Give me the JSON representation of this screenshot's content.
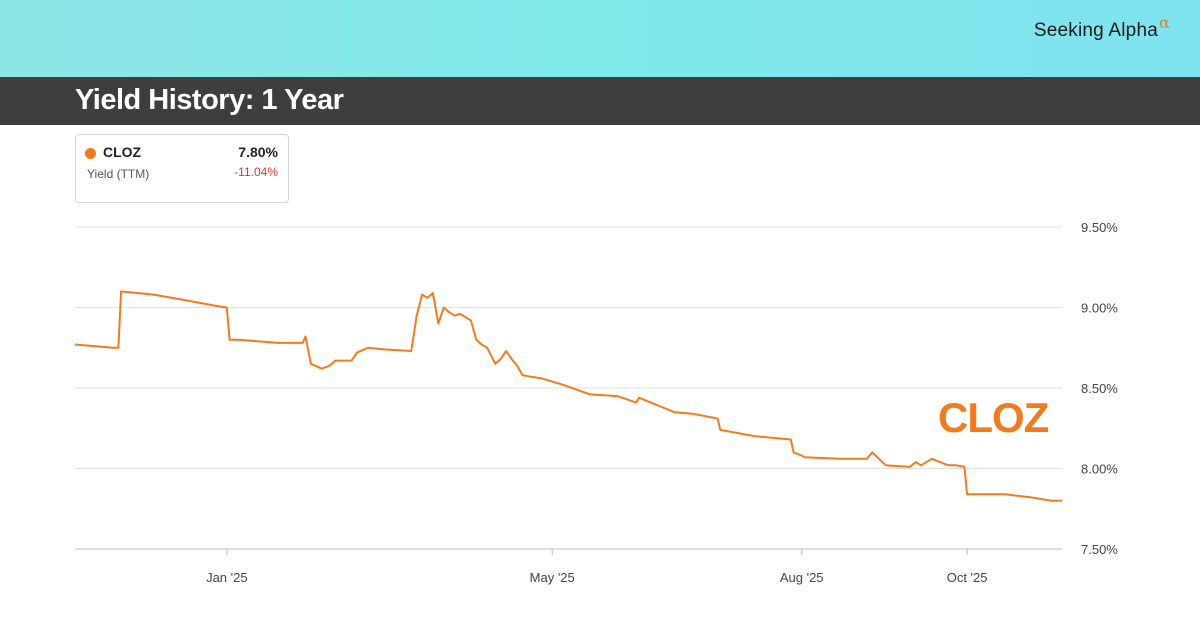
{
  "brand": {
    "name": "Seeking Alpha",
    "mark": "α"
  },
  "header": {
    "title": "Yield History: 1 Year"
  },
  "legend": {
    "ticker": "CLOZ",
    "value": "7.80%",
    "label": "Yield (TTM)",
    "change": "-11.04%"
  },
  "overlay_label": "CLOZ",
  "colors": {
    "series": "#f07c21",
    "negative": "#d33b3b",
    "title_band": "#3e3e3e",
    "top_band": "#80e8ea"
  },
  "chart_data": {
    "type": "line",
    "title": "Yield History: 1 Year",
    "xlabel": "",
    "ylabel": "",
    "ylim": [
      7.5,
      9.5
    ],
    "yticks": [
      9.5,
      9.0,
      8.5,
      8.0,
      7.5
    ],
    "ytick_labels": [
      "9.50%",
      "9.00%",
      "8.50%",
      "8.00%",
      "7.50%"
    ],
    "xlim": [
      "2024-11-06",
      "2025-11-05"
    ],
    "xticks": [
      "2025-01-01",
      "2025-05-01",
      "2025-08-01",
      "2025-10-01"
    ],
    "xtick_labels": [
      "Jan '25",
      "May '25",
      "Aug '25",
      "Oct '25"
    ],
    "grid": true,
    "legend_position": "top-left",
    "series": [
      {
        "name": "CLOZ",
        "x": [
          "2024-11-06",
          "2024-11-20",
          "2024-11-22",
          "2024-11-23",
          "2024-12-05",
          "2024-12-15",
          "2024-12-28",
          "2025-01-01",
          "2025-01-02",
          "2025-01-05",
          "2025-01-20",
          "2025-01-29",
          "2025-01-30",
          "2025-02-01",
          "2025-02-05",
          "2025-02-08",
          "2025-02-10",
          "2025-02-16",
          "2025-02-18",
          "2025-02-22",
          "2025-02-28",
          "2025-03-10",
          "2025-03-12",
          "2025-03-14",
          "2025-03-16",
          "2025-03-18",
          "2025-03-20",
          "2025-03-22",
          "2025-03-24",
          "2025-03-26",
          "2025-03-28",
          "2025-03-30",
          "2025-04-01",
          "2025-04-03",
          "2025-04-05",
          "2025-04-07",
          "2025-04-10",
          "2025-04-12",
          "2025-04-14",
          "2025-04-16",
          "2025-04-18",
          "2025-04-20",
          "2025-04-23",
          "2025-04-27",
          "2025-05-05",
          "2025-05-15",
          "2025-05-25",
          "2025-06-01",
          "2025-06-02",
          "2025-06-15",
          "2025-06-22",
          "2025-06-28",
          "2025-07-01",
          "2025-07-02",
          "2025-07-15",
          "2025-07-28",
          "2025-07-29",
          "2025-08-01",
          "2025-08-02",
          "2025-08-15",
          "2025-08-25",
          "2025-08-27",
          "2025-09-01",
          "2025-09-10",
          "2025-09-12",
          "2025-09-14",
          "2025-09-18",
          "2025-09-21",
          "2025-09-24",
          "2025-09-27",
          "2025-09-30",
          "2025-10-01",
          "2025-10-05",
          "2025-10-15",
          "2025-10-25",
          "2025-11-01",
          "2025-11-05"
        ],
        "y": [
          8.77,
          8.75,
          8.75,
          9.1,
          9.08,
          9.05,
          9.01,
          9.0,
          8.8,
          8.8,
          8.78,
          8.78,
          8.82,
          8.65,
          8.62,
          8.64,
          8.67,
          8.67,
          8.72,
          8.75,
          8.74,
          8.73,
          8.95,
          9.08,
          9.06,
          9.09,
          8.9,
          9.0,
          8.97,
          8.95,
          8.96,
          8.94,
          8.92,
          8.8,
          8.77,
          8.75,
          8.65,
          8.68,
          8.73,
          8.68,
          8.64,
          8.58,
          8.57,
          8.56,
          8.52,
          8.46,
          8.45,
          8.41,
          8.44,
          8.35,
          8.34,
          8.32,
          8.31,
          8.24,
          8.2,
          8.18,
          8.1,
          8.08,
          8.07,
          8.06,
          8.06,
          8.1,
          8.02,
          8.01,
          8.04,
          8.02,
          8.06,
          8.04,
          8.02,
          8.02,
          8.01,
          7.84,
          7.84,
          7.84,
          7.82,
          7.8,
          7.8
        ]
      }
    ]
  }
}
